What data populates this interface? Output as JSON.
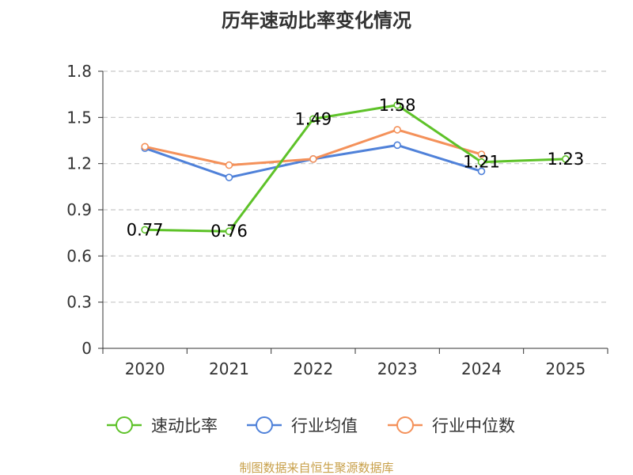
{
  "chart_data": {
    "type": "line",
    "title": "历年速动比率变化情况",
    "categories": [
      "2020",
      "2021",
      "2022",
      "2023",
      "2024",
      "2025"
    ],
    "y_ticks": [
      "0",
      "0.3",
      "0.6",
      "0.9",
      "1.2",
      "1.5",
      "1.8"
    ],
    "ylim": [
      0,
      1.8
    ],
    "grid": true,
    "legend_position": "bottom",
    "series": [
      {
        "name": "速动比率",
        "color": "#5ec229",
        "values": [
          0.77,
          0.76,
          1.49,
          1.58,
          1.21,
          1.23
        ],
        "labels": [
          "0.77",
          "0.76",
          "1.49",
          "1.58",
          "1.21",
          "1.23"
        ]
      },
      {
        "name": "行业均值",
        "color": "#4f81d9",
        "values": [
          1.3,
          1.11,
          1.23,
          1.32,
          1.15,
          null
        ]
      },
      {
        "name": "行业中位数",
        "color": "#f4915a",
        "values": [
          1.31,
          1.19,
          1.23,
          1.42,
          1.26,
          null
        ]
      }
    ],
    "source": "制图数据来自恒生聚源数据库"
  }
}
